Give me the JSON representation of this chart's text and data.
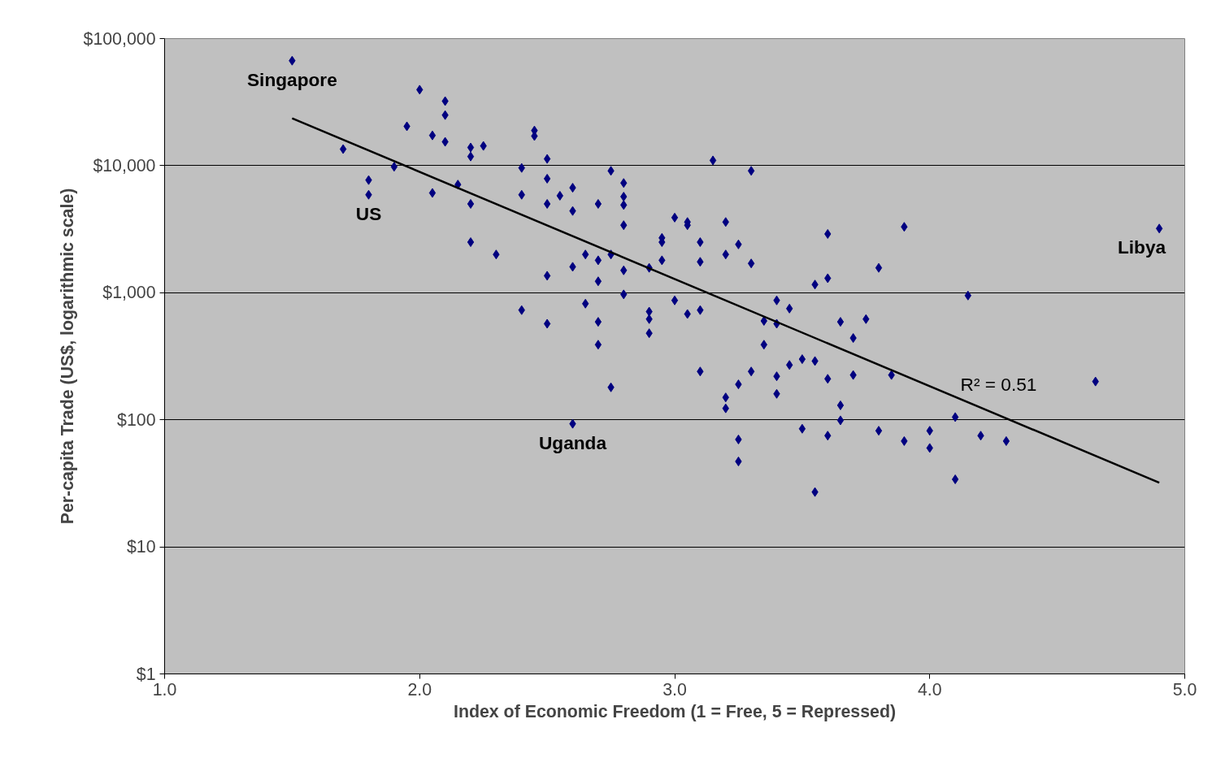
{
  "chart_data": {
    "type": "scatter",
    "xlabel": "Index of Economic Freedom (1 = Free, 5 = Repressed)",
    "ylabel": "Per-capita Trade (US$, logarithmic scale)",
    "log": "y",
    "grid": "y",
    "xlim": [
      1.0,
      5.0
    ],
    "xticks": [
      {
        "value": 1.0,
        "label": "1.0"
      },
      {
        "value": 2.0,
        "label": "2.0"
      },
      {
        "value": 3.0,
        "label": "3.0"
      },
      {
        "value": 4.0,
        "label": "4.0"
      },
      {
        "value": 5.0,
        "label": "5.0"
      }
    ],
    "ylim": [
      1,
      100000
    ],
    "yticks": [
      {
        "value": 1,
        "label": "$1"
      },
      {
        "value": 10,
        "label": "$10"
      },
      {
        "value": 100,
        "label": "$100"
      },
      {
        "value": 1000,
        "label": "$1,000"
      },
      {
        "value": 10000,
        "label": "$10,000"
      },
      {
        "value": 100000,
        "label": "$100,000"
      }
    ],
    "series": [
      {
        "marker": "diamond",
        "color": "#000080",
        "x": [
          1.5,
          1.7,
          1.8,
          1.8,
          1.9,
          1.95,
          2.0,
          2.05,
          2.05,
          2.1,
          2.1,
          2.1,
          2.15,
          2.2,
          2.2,
          2.2,
          2.2,
          2.25,
          2.3,
          2.4,
          2.4,
          2.4,
          2.45,
          2.45,
          2.5,
          2.5,
          2.5,
          2.5,
          2.5,
          2.55,
          2.6,
          2.6,
          2.6,
          2.6,
          2.65,
          2.65,
          2.7,
          2.7,
          2.7,
          2.7,
          2.7,
          2.75,
          2.75,
          2.75,
          2.8,
          2.8,
          2.8,
          2.8,
          2.8,
          2.8,
          2.9,
          2.9,
          2.9,
          2.9,
          2.95,
          2.95,
          2.95,
          3.0,
          3.0,
          3.05,
          3.05,
          3.05,
          3.1,
          3.1,
          3.1,
          3.1,
          3.15,
          3.2,
          3.2,
          3.2,
          3.2,
          3.25,
          3.25,
          3.25,
          3.25,
          3.3,
          3.3,
          3.3,
          3.35,
          3.35,
          3.4,
          3.4,
          3.4,
          3.4,
          3.45,
          3.45,
          3.5,
          3.5,
          3.55,
          3.55,
          3.55,
          3.6,
          3.6,
          3.6,
          3.6,
          3.65,
          3.65,
          3.65,
          3.7,
          3.7,
          3.75,
          3.8,
          3.8,
          3.85,
          3.9,
          3.9,
          4.0,
          4.0,
          4.1,
          4.1,
          4.15,
          4.2,
          4.3,
          4.65,
          4.9
        ],
        "values": [
          67000,
          13500,
          7700,
          5900,
          9800,
          20400,
          39600,
          17300,
          6100,
          32200,
          25000,
          15400,
          7100,
          13900,
          11800,
          5000,
          2500,
          14300,
          2000,
          9600,
          5900,
          730,
          18900,
          17100,
          11300,
          7900,
          5000,
          1360,
          570,
          5800,
          6700,
          4400,
          1600,
          93,
          2000,
          820,
          5000,
          1800,
          1230,
          590,
          390,
          9100,
          2000,
          180,
          7300,
          5700,
          4900,
          3400,
          1500,
          970,
          1570,
          710,
          620,
          480,
          2700,
          2500,
          1800,
          3900,
          870,
          3600,
          3400,
          680,
          2500,
          1750,
          730,
          240,
          11000,
          3600,
          2000,
          150,
          123,
          2400,
          190,
          70,
          47,
          9100,
          1700,
          240,
          600,
          390,
          870,
          570,
          220,
          160,
          750,
          270,
          300,
          85,
          1160,
          290,
          27,
          2900,
          1300,
          210,
          75,
          590,
          130,
          99,
          440,
          225,
          620,
          1570,
          82,
          225,
          3300,
          68,
          82,
          60,
          105,
          34,
          950,
          75,
          68,
          200,
          3200
        ]
      },
      {
        "type": "line",
        "marker": "none",
        "color": "#000000",
        "x": [
          1.5,
          4.9
        ],
        "values": [
          23600,
          32
        ]
      }
    ],
    "annotations": [
      {
        "text": "Singapore",
        "x": 1.5,
        "y": 67000
      },
      {
        "text": "US",
        "x": 1.8,
        "y": 5900
      },
      {
        "text": "Uganda",
        "x": 2.6,
        "y": 93
      },
      {
        "text": "Libya",
        "x": 4.9,
        "y": 3200
      },
      {
        "text": "R² = 0.51",
        "x": 4.27,
        "y": 108
      }
    ]
  }
}
